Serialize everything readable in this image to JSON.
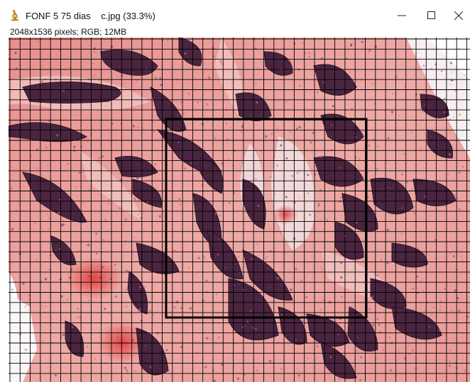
{
  "window": {
    "title": "FONF 5 75 dias    c.jpg (33.3%)",
    "image_info": "2048x1536 pixels; RGB; 12MB",
    "icon": "microscope-icon",
    "controls": [
      "minimize-icon",
      "maximize-icon",
      "close-icon"
    ]
  },
  "image": {
    "description_kind": "histology",
    "grid_color": "#000000",
    "tissue_color": "#e8979a",
    "stain_color": "#4a2540",
    "background_color": "#ffffff"
  }
}
